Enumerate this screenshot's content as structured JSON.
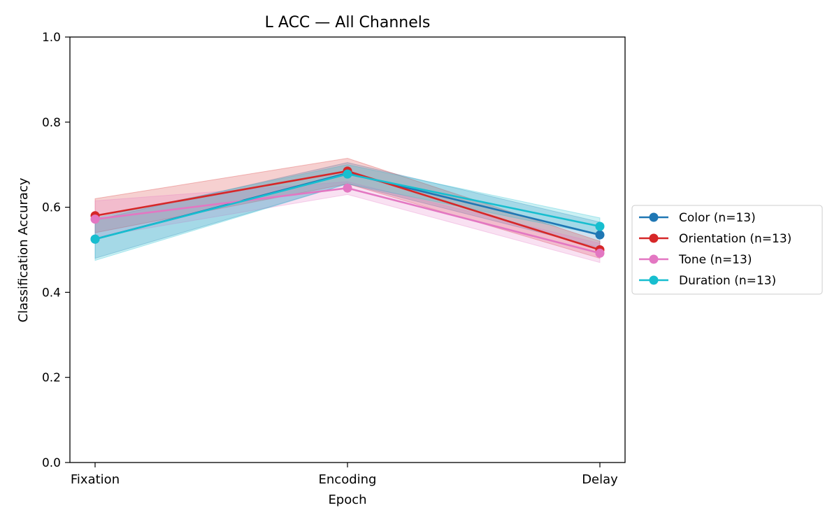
{
  "chart_data": {
    "type": "line",
    "title": "L ACC — All Channels",
    "xlabel": "Epoch",
    "ylabel": "Classification Accuracy",
    "categories": [
      "Fixation",
      "Encoding",
      "Delay"
    ],
    "ylim": [
      0,
      1.0
    ],
    "yticks": [
      "0.0",
      "0.2",
      "0.4",
      "0.6",
      "0.8",
      "1.0"
    ],
    "grid": false,
    "legend_position": "right-outside",
    "series": [
      {
        "name": "Color (n=13)",
        "color": "#1f77b4",
        "values": [
          0.525,
          0.68,
          0.535
        ],
        "lower": [
          0.48,
          0.655,
          0.505
        ],
        "upper": [
          0.57,
          0.705,
          0.565
        ]
      },
      {
        "name": "Orientation (n=13)",
        "color": "#d62728",
        "values": [
          0.58,
          0.685,
          0.5
        ],
        "lower": [
          0.54,
          0.655,
          0.48
        ],
        "upper": [
          0.62,
          0.715,
          0.52
        ]
      },
      {
        "name": "Tone (n=13)",
        "color": "#e377c2",
        "values": [
          0.572,
          0.645,
          0.492
        ],
        "lower": [
          0.53,
          0.63,
          0.47
        ],
        "upper": [
          0.615,
          0.66,
          0.515
        ]
      },
      {
        "name": "Duration (n=13)",
        "color": "#17becf",
        "values": [
          0.525,
          0.678,
          0.555
        ],
        "lower": [
          0.475,
          0.655,
          0.535
        ],
        "upper": [
          0.575,
          0.7,
          0.575
        ]
      }
    ]
  }
}
